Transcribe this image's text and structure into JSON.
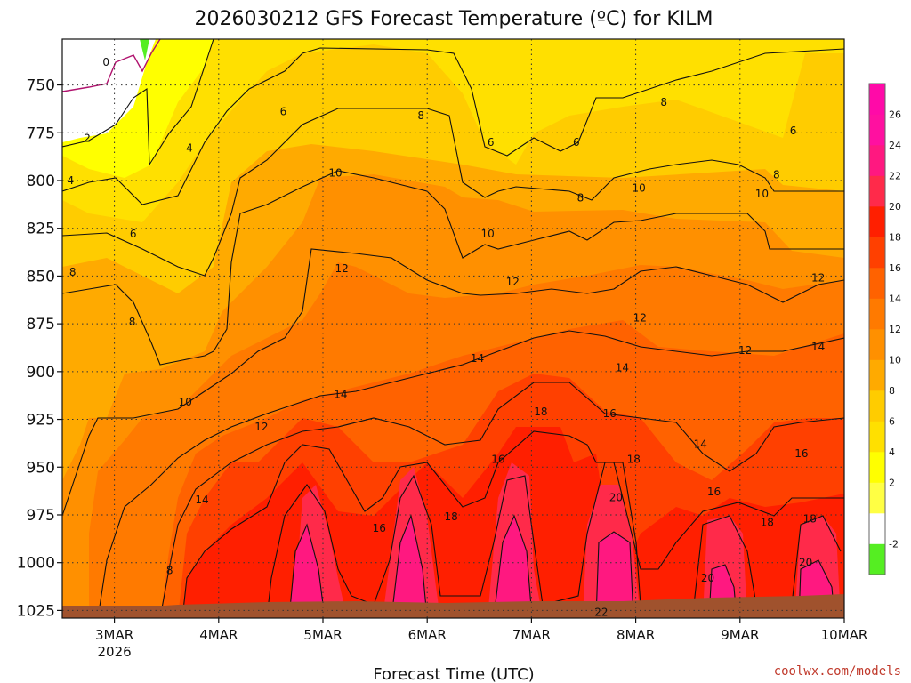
{
  "chart_data": {
    "type": "heatmap",
    "title": "2026030212 GFS Forecast Temperature (ºC) for KILM",
    "xlabel": "Forecast Time (UTC)",
    "ylabel": "",
    "credit": "coolwx.com/models",
    "x_ticks": [
      {
        "label": "3MAR",
        "sub": "2026",
        "day": 3
      },
      {
        "label": "4MAR",
        "sub": "",
        "day": 4
      },
      {
        "label": "5MAR",
        "sub": "",
        "day": 5
      },
      {
        "label": "6MAR",
        "sub": "",
        "day": 6
      },
      {
        "label": "7MAR",
        "sub": "",
        "day": 7
      },
      {
        "label": "8MAR",
        "sub": "",
        "day": 8
      },
      {
        "label": "9MAR",
        "sub": "",
        "day": 9
      },
      {
        "label": "10MAR",
        "sub": "",
        "day": 10
      }
    ],
    "xlim_days": [
      2.5,
      10
    ],
    "y_ticks": [
      750,
      775,
      800,
      825,
      850,
      875,
      900,
      925,
      950,
      975,
      1000,
      1025
    ],
    "ylim_hpa": [
      726,
      1029
    ],
    "y_inverted": true,
    "grid": "dotted",
    "colorbar": {
      "position": "right",
      "levels": [
        -4,
        -2,
        0,
        2,
        4,
        6,
        8,
        10,
        12,
        14,
        16,
        18,
        20,
        22,
        24,
        26,
        28
      ],
      "tick_labels": [
        "-2",
        "2",
        "4",
        "6",
        "8",
        "10",
        "12",
        "14",
        "16",
        "18",
        "20",
        "22",
        "24",
        "26"
      ],
      "colors": [
        "#55ee22",
        "#ffffff",
        "#ffff44",
        "#ffff00",
        "#ffe000",
        "#ffcc00",
        "#ffaa00",
        "#ff9000",
        "#ff7a00",
        "#ff6200",
        "#ff4000",
        "#ff1f00",
        "#ff2a4a",
        "#ff1880",
        "#ff10a0",
        "#ff0aa8"
      ]
    },
    "contour_labels": [
      {
        "text": "0",
        "day": 2.92,
        "p": 738
      },
      {
        "text": "2",
        "day": 2.74,
        "p": 778
      },
      {
        "text": "4",
        "day": 2.58,
        "p": 800
      },
      {
        "text": "4",
        "day": 3.72,
        "p": 783
      },
      {
        "text": "6",
        "day": 3.18,
        "p": 828
      },
      {
        "text": "6",
        "day": 4.62,
        "p": 764
      },
      {
        "text": "8",
        "day": 2.6,
        "p": 848
      },
      {
        "text": "8",
        "day": 3.17,
        "p": 874
      },
      {
        "text": "8",
        "day": 3.53,
        "p": 1004
      },
      {
        "text": "10",
        "day": 3.68,
        "p": 916
      },
      {
        "text": "10",
        "day": 5.12,
        "p": 796
      },
      {
        "text": "12",
        "day": 4.41,
        "p": 929
      },
      {
        "text": "12",
        "day": 5.18,
        "p": 846
      },
      {
        "text": "14",
        "day": 3.84,
        "p": 967
      },
      {
        "text": "14",
        "day": 5.17,
        "p": 912
      },
      {
        "text": "16",
        "day": 5.54,
        "p": 982
      },
      {
        "text": "18",
        "day": 6.23,
        "p": 976
      },
      {
        "text": "8",
        "day": 5.94,
        "p": 766
      },
      {
        "text": "6",
        "day": 6.61,
        "p": 780
      },
      {
        "text": "10",
        "day": 6.58,
        "p": 828
      },
      {
        "text": "12",
        "day": 6.82,
        "p": 853
      },
      {
        "text": "14",
        "day": 6.48,
        "p": 893
      },
      {
        "text": "16",
        "day": 6.68,
        "p": 946
      },
      {
        "text": "18",
        "day": 7.09,
        "p": 921
      },
      {
        "text": "6",
        "day": 7.43,
        "p": 780
      },
      {
        "text": "8",
        "day": 7.47,
        "p": 809
      },
      {
        "text": "10",
        "day": 8.03,
        "p": 804
      },
      {
        "text": "8",
        "day": 8.27,
        "p": 759
      },
      {
        "text": "12",
        "day": 8.04,
        "p": 872
      },
      {
        "text": "14",
        "day": 7.87,
        "p": 898
      },
      {
        "text": "16",
        "day": 7.75,
        "p": 922
      },
      {
        "text": "18",
        "day": 7.98,
        "p": 946
      },
      {
        "text": "20",
        "day": 7.81,
        "p": 966
      },
      {
        "text": "22",
        "day": 7.67,
        "p": 1026
      },
      {
        "text": "12",
        "day": 9.05,
        "p": 889
      },
      {
        "text": "14",
        "day": 8.62,
        "p": 938
      },
      {
        "text": "16",
        "day": 8.75,
        "p": 963
      },
      {
        "text": "18",
        "day": 9.26,
        "p": 979
      },
      {
        "text": "20",
        "day": 8.69,
        "p": 1008
      },
      {
        "text": "6",
        "day": 9.51,
        "p": 774
      },
      {
        "text": "8",
        "day": 9.35,
        "p": 797
      },
      {
        "text": "10",
        "day": 9.21,
        "p": 807
      },
      {
        "text": "12",
        "day": 9.75,
        "p": 851
      },
      {
        "text": "14",
        "day": 9.75,
        "p": 887
      },
      {
        "text": "16",
        "day": 9.59,
        "p": 943
      },
      {
        "text": "18",
        "day": 9.67,
        "p": 977
      },
      {
        "text": "20",
        "day": 9.63,
        "p": 1000
      }
    ]
  }
}
